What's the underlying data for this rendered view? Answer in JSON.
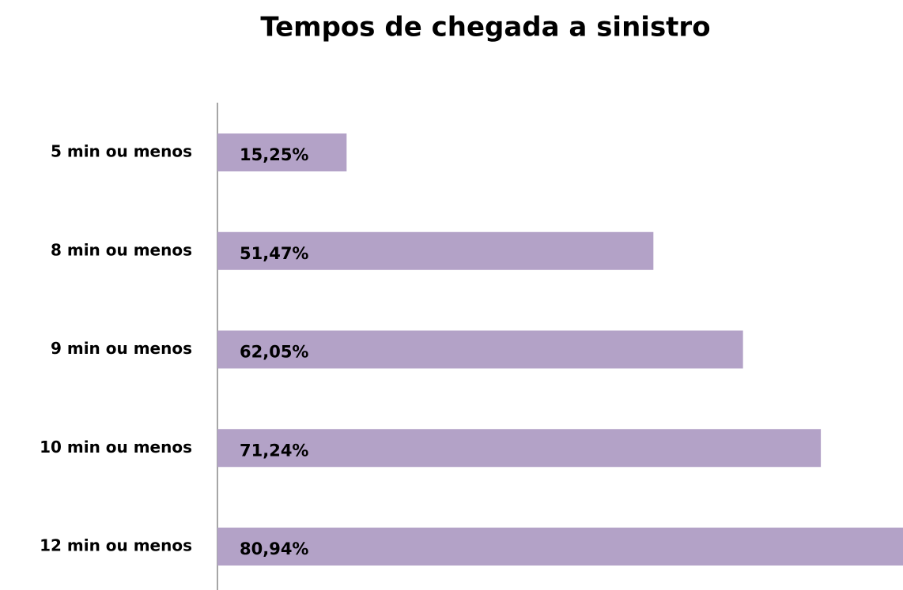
{
  "chart_data": {
    "type": "bar",
    "orientation": "horizontal",
    "title": "Tempos de chegada a sinistro",
    "categories": [
      "5 min ou menos",
      "8 min ou menos",
      "9 min ou menos",
      "10 min ou menos",
      "12 min ou menos"
    ],
    "values": [
      15.25,
      51.47,
      62.05,
      71.24,
      80.94
    ],
    "value_labels": [
      "15,25%",
      "51,47%",
      "62,05%",
      "71,24%",
      "80,94%"
    ],
    "color": "#b3a2c7"
  }
}
